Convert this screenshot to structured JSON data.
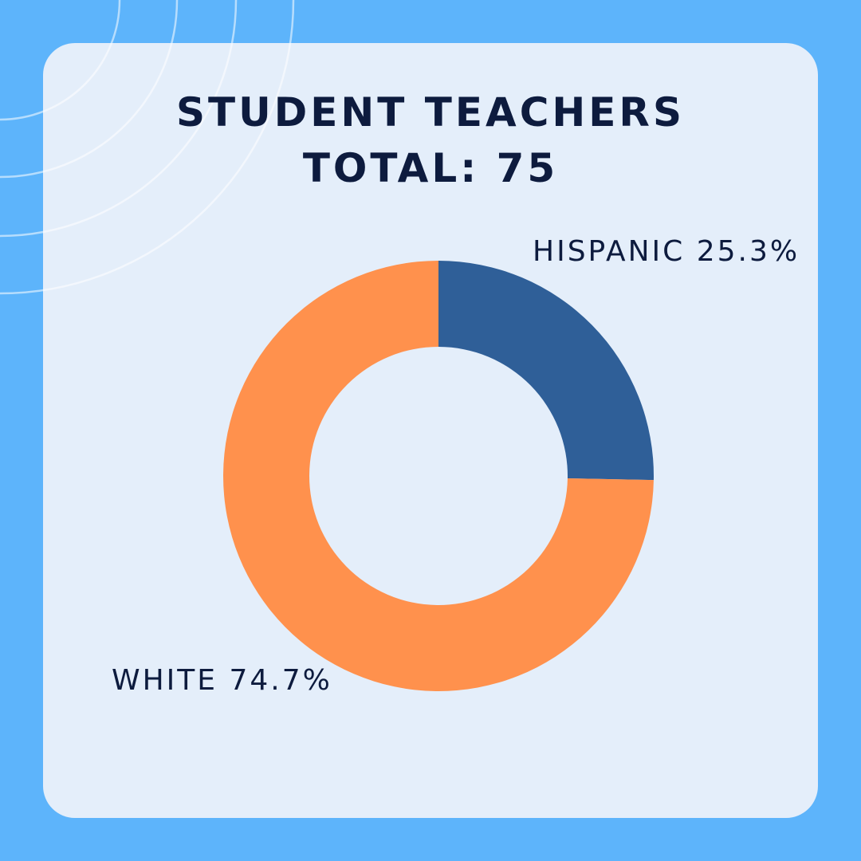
{
  "chart_data": {
    "type": "pie",
    "title": "STUDENT TEACHERS",
    "subtitle": "TOTAL: 75",
    "categories": [
      "HISPANIC",
      "WHITE"
    ],
    "values": [
      25.3,
      74.7
    ],
    "value_labels": [
      "25.3%",
      "74.7%"
    ],
    "colors": [
      "#2f5f98",
      "#ff914d"
    ],
    "donut": true
  }
}
